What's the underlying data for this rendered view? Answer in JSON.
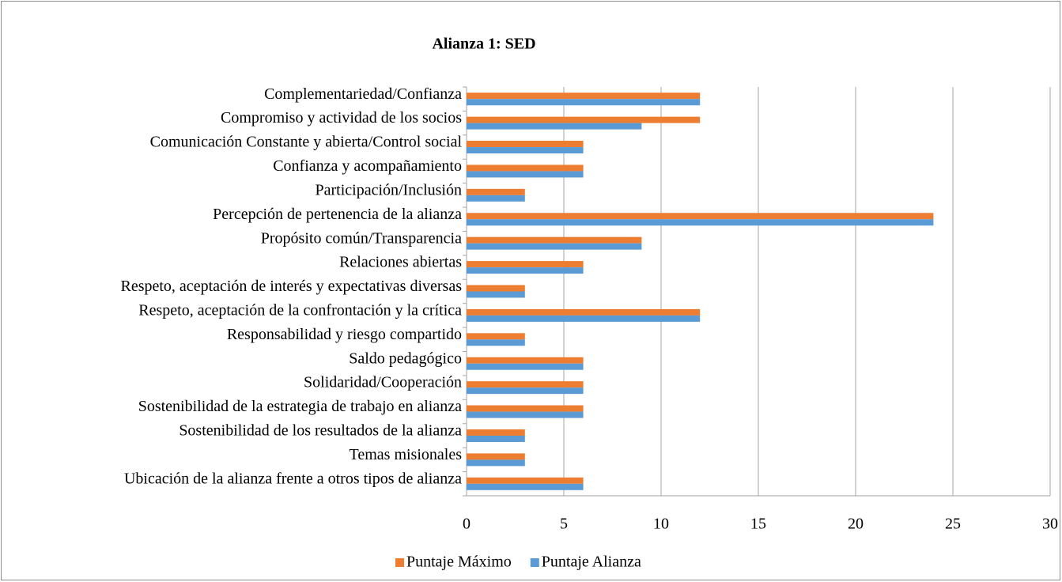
{
  "chart_data": {
    "type": "barh",
    "title": "Alianza 1: SED",
    "categories": [
      "Complementariedad/Confianza",
      "Compromiso y actividad de los socios",
      "Comunicación Constante y abierta/Control social",
      "Confianza y acompañamiento",
      "Participación/Inclusión",
      "Percepción de pertenencia de la alianza",
      "Propósito común/Transparencia",
      "Relaciones abiertas",
      "Respeto, aceptación de interés y expectativas diversas",
      "Respeto, aceptación de la confrontación y la crítica",
      "Responsabilidad y riesgo compartido",
      "Saldo pedagógico",
      "Solidaridad/Cooperación",
      "Sostenibilidad de la estrategia de trabajo en alianza",
      "Sostenibilidad de los resultados de la alianza",
      "Temas misionales",
      "Ubicación de la alianza frente a otros tipos de alianza"
    ],
    "series": [
      {
        "name": "Puntaje Máximo",
        "color": "#ed7d31",
        "values": [
          12,
          12,
          6,
          6,
          3,
          24,
          9,
          6,
          3,
          12,
          3,
          6,
          6,
          6,
          3,
          3,
          6
        ]
      },
      {
        "name": "Puntaje Alianza",
        "color": "#5b9bd5",
        "values": [
          12,
          9,
          6,
          6,
          3,
          24,
          9,
          6,
          3,
          12,
          3,
          6,
          6,
          6,
          3,
          3,
          6
        ]
      }
    ],
    "xlim": [
      0,
      30
    ],
    "xticks": [
      0,
      5,
      10,
      15,
      20,
      25,
      30
    ],
    "grid": true,
    "legend": "bottom"
  }
}
